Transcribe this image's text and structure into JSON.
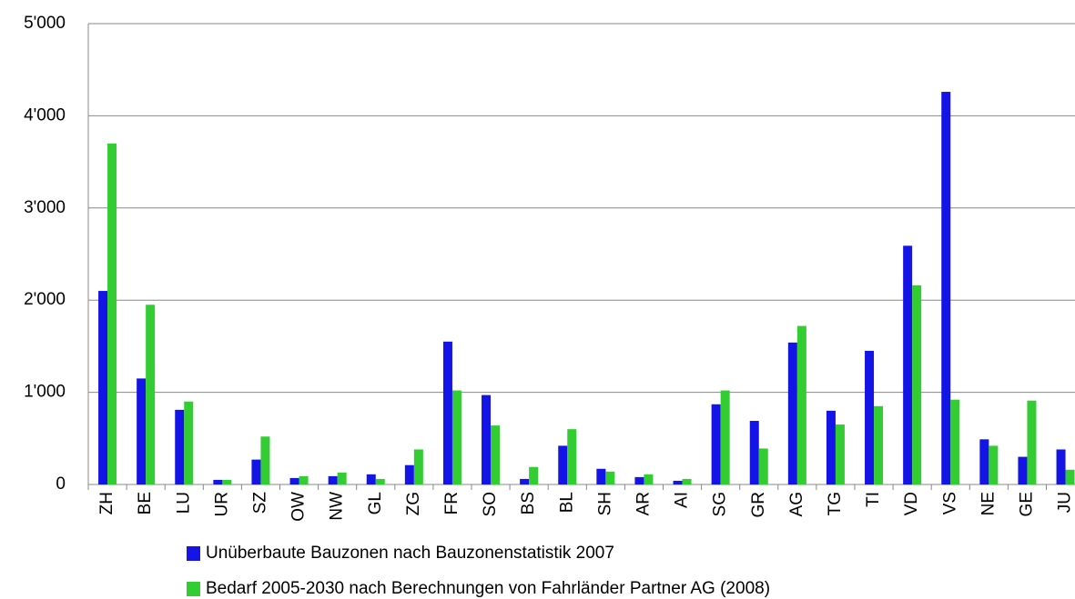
{
  "chart_data": {
    "type": "bar",
    "categories": [
      "ZH",
      "BE",
      "LU",
      "UR",
      "SZ",
      "OW",
      "NW",
      "GL",
      "ZG",
      "FR",
      "SO",
      "BS",
      "BL",
      "SH",
      "AR",
      "AI",
      "SG",
      "GR",
      "AG",
      "TG",
      "TI",
      "VD",
      "VS",
      "NE",
      "GE",
      "JU"
    ],
    "series": [
      {
        "name": "Unüberbaute Bauzonen nach Bauzonenstatistik 2007",
        "color": "#1414e6",
        "values": [
          2100,
          1150,
          810,
          50,
          270,
          70,
          90,
          110,
          210,
          1550,
          970,
          60,
          420,
          170,
          80,
          40,
          870,
          690,
          1540,
          800,
          1450,
          2590,
          4260,
          490,
          300,
          380
        ]
      },
      {
        "name": "Bedarf 2005-2030 nach Berechnungen von Fahrländer Partner AG (2008)",
        "color": "#33cc33",
        "values": [
          3700,
          1950,
          900,
          50,
          520,
          90,
          130,
          60,
          380,
          1020,
          640,
          190,
          600,
          140,
          110,
          60,
          1020,
          390,
          1720,
          650,
          850,
          2160,
          920,
          420,
          910,
          160
        ]
      }
    ],
    "ylim": [
      0,
      5000
    ],
    "yticks": [
      0,
      {
        "value": 1000,
        "label": "1'000"
      },
      {
        "value": 2000,
        "label": "2'000"
      },
      {
        "value": 3000,
        "label": "3'000"
      },
      {
        "value": 4000,
        "label": "4'000"
      },
      {
        "value": 5000,
        "label": "5'000"
      }
    ],
    "grid": true
  }
}
